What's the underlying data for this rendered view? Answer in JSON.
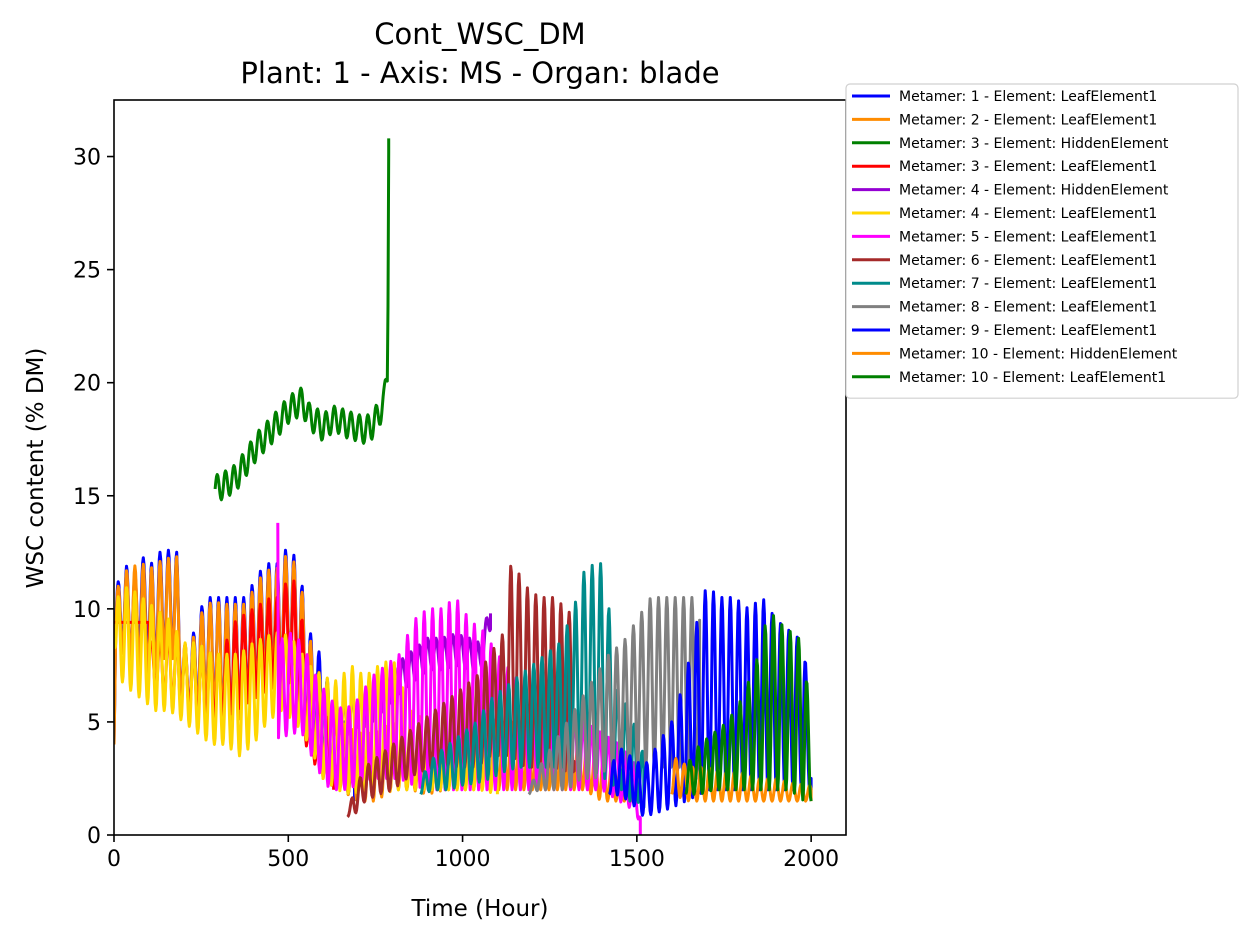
{
  "chart_data": {
    "type": "line",
    "title": "Cont_WSC_DM",
    "subtitle": "Plant: 1 - Axis: MS - Organ: blade",
    "xlabel": "Time (Hour)",
    "ylabel": "WSC content (% DM)",
    "xlim": [
      0,
      2100
    ],
    "ylim": [
      0,
      32.5
    ],
    "x_ticks": [
      0,
      500,
      1000,
      1500,
      2000
    ],
    "y_ticks": [
      0,
      5,
      10,
      15,
      20,
      25,
      30
    ],
    "grid": false,
    "legend_position": "outside right, top",
    "series": [
      {
        "name": "Metamer: 1 - Element: LeafElement1",
        "color": "#0000ff",
        "osc": true,
        "x": [
          0,
          5,
          40,
          60,
          80,
          110,
          130,
          160,
          180,
          200,
          230,
          260,
          290,
          320,
          350,
          380,
          410,
          440,
          470,
          500,
          530,
          560,
          580,
          600,
          630,
          660,
          690
        ],
        "y": [
          4.0,
          11.0,
          12.0,
          11.5,
          12.3,
          12.0,
          12.5,
          12.6,
          12.5,
          8.0,
          9.0,
          10.5,
          10.5,
          10.5,
          10.5,
          10.5,
          11.5,
          12.0,
          12.0,
          12.8,
          12.0,
          9.0,
          8.5,
          7.5,
          6.0,
          5.0,
          4.0
        ],
        "y_low": [
          4.0,
          8.5,
          8.0,
          7.5,
          8.5,
          7.0,
          8.0,
          8.0,
          8.0,
          5.5,
          5.5,
          6.0,
          5.5,
          5.0,
          5.0,
          6.0,
          6.5,
          7.0,
          7.0,
          7.5,
          6.0,
          4.0,
          3.5,
          3.0,
          2.5,
          2.0,
          1.5
        ]
      },
      {
        "name": "Metamer: 2 - Element: LeafElement1",
        "color": "#ff8c00",
        "osc": true,
        "x": [
          0,
          5,
          40,
          80,
          110,
          140,
          180,
          200,
          230,
          260,
          290,
          320,
          350,
          380,
          410,
          440,
          470,
          500,
          530,
          560,
          600,
          650,
          700,
          750,
          800,
          850,
          900,
          950,
          1000,
          1050,
          1100,
          1150,
          1200,
          1250,
          1300,
          1350,
          1400,
          1450,
          1500
        ],
        "y": [
          4.0,
          10.8,
          11.8,
          12.0,
          11.8,
          12.2,
          12.3,
          8.0,
          8.8,
          10.2,
          10.3,
          10.2,
          10.2,
          10.2,
          11.2,
          11.7,
          11.8,
          12.5,
          11.7,
          8.8,
          6.5,
          5.0,
          4.5,
          4.5,
          5.0,
          4.0,
          4.5,
          5.0,
          5.0,
          5.5,
          5.0,
          5.0,
          4.5,
          4.5,
          5.0,
          4.0,
          3.5,
          3.0,
          2.5
        ],
        "y_low": [
          4.0,
          8.3,
          7.8,
          7.3,
          6.8,
          7.8,
          7.8,
          5.3,
          5.3,
          5.8,
          5.3,
          4.8,
          4.8,
          5.8,
          6.3,
          6.8,
          6.8,
          7.3,
          5.8,
          3.8,
          2.5,
          2.0,
          1.5,
          1.5,
          2.0,
          2.0,
          1.8,
          2.0,
          2.0,
          2.0,
          2.0,
          2.0,
          2.0,
          2.0,
          2.0,
          2.0,
          1.5,
          1.5,
          1.5
        ]
      },
      {
        "name": "Metamer: 3 - Element: HiddenElement",
        "color": "#008000",
        "osc": true,
        "wiggle": 0.6,
        "period": 24,
        "x": [
          290,
          320,
          350,
          380,
          410,
          440,
          470,
          500,
          520,
          540,
          560,
          580,
          600,
          620,
          640,
          660,
          680,
          700,
          720,
          740,
          760,
          775,
          785,
          788
        ],
        "y": [
          15.3,
          15.5,
          15.8,
          16.5,
          17.2,
          17.7,
          18.2,
          18.8,
          19.0,
          19.2,
          18.5,
          18.3,
          18.0,
          18.3,
          18.4,
          18.2,
          18.1,
          18.0,
          17.9,
          18.1,
          18.6,
          19.2,
          20.5,
          30.8
        ]
      },
      {
        "name": "Metamer: 3 - Element: LeafElement1",
        "color": "#ff0000",
        "osc": true,
        "x": [
          0,
          100,
          105,
          150,
          200,
          250,
          300,
          350,
          400,
          450,
          480,
          500,
          530,
          550,
          580,
          600,
          630
        ],
        "y": [
          9.4,
          9.4,
          8.5,
          9.0,
          8.5,
          8.0,
          7.8,
          9.5,
          10.0,
          10.5,
          10.5,
          11.5,
          11.0,
          8.0,
          6.5,
          6.0,
          4.0
        ],
        "y_low": [
          9.4,
          9.4,
          6.5,
          6.0,
          5.5,
          5.0,
          5.0,
          5.5,
          6.0,
          6.5,
          6.5,
          7.0,
          5.0,
          4.0,
          3.0,
          3.0,
          2.0
        ]
      },
      {
        "name": "Metamer: 4 - Element: HiddenElement",
        "color": "#9400d3",
        "osc": true,
        "wiggle": 0.7,
        "period": 24,
        "x": [
          630,
          660,
          700,
          730,
          760,
          790,
          820,
          860,
          900,
          940,
          980,
          1020,
          1050,
          1070,
          1080
        ],
        "y": [
          5.5,
          5.0,
          5.5,
          5.5,
          6.0,
          6.5,
          7.0,
          7.5,
          8.0,
          8.0,
          8.2,
          8.0,
          7.8,
          9.0,
          9.8
        ]
      },
      {
        "name": "Metamer: 4 - Element: LeafElement1",
        "color": "#ffd700",
        "osc": true,
        "x": [
          0,
          10,
          40,
          80,
          120,
          160,
          200,
          240,
          280,
          320,
          360,
          400,
          440,
          480,
          520,
          560,
          600,
          640,
          680,
          720,
          760,
          800,
          850,
          900,
          950,
          1000,
          1050,
          1100
        ],
        "y": [
          9.0,
          10.5,
          11.0,
          10.5,
          10.0,
          9.5,
          8.5,
          8.5,
          8.0,
          8.0,
          8.0,
          8.5,
          8.8,
          9.0,
          8.5,
          7.5,
          7.0,
          6.8,
          7.5,
          7.0,
          7.5,
          7.8,
          5.5,
          5.0,
          4.5,
          4.5,
          4.5,
          4.0
        ],
        "y_low": [
          8.5,
          7.0,
          6.5,
          6.0,
          5.5,
          5.5,
          5.0,
          4.5,
          4.0,
          4.0,
          3.5,
          4.0,
          5.0,
          5.5,
          5.0,
          4.0,
          2.5,
          2.0,
          1.8,
          2.0,
          1.8,
          2.0,
          2.0,
          2.0,
          2.0,
          2.0,
          2.0,
          1.8
        ]
      },
      {
        "name": "Metamer: 5 - Element: LeafElement1",
        "color": "#ff00ff",
        "osc": true,
        "x": [
          470,
          472,
          500,
          540,
          580,
          620,
          660,
          700,
          740,
          780,
          820,
          860,
          900,
          940,
          980,
          1020,
          1060,
          1100,
          1150,
          1200,
          1250,
          1300,
          1350,
          1400,
          1450,
          1500,
          1510
        ],
        "y": [
          13.8,
          8.5,
          9.0,
          8.5,
          7.0,
          6.0,
          5.5,
          6.0,
          7.0,
          7.5,
          8.0,
          9.5,
          10.0,
          10.0,
          10.5,
          9.5,
          9.0,
          8.0,
          7.0,
          6.5,
          6.0,
          5.5,
          5.0,
          4.5,
          4.0,
          3.0,
          1.0
        ],
        "y_low": [
          13.8,
          4.0,
          4.5,
          4.5,
          3.0,
          2.0,
          2.0,
          2.2,
          2.5,
          2.5,
          2.5,
          2.2,
          2.0,
          2.0,
          2.0,
          2.0,
          2.0,
          2.0,
          2.0,
          2.0,
          2.0,
          2.0,
          2.0,
          2.0,
          1.5,
          1.0,
          0.0
        ]
      },
      {
        "name": "Metamer: 6 - Element: LeafElement1",
        "color": "#a52a2a",
        "osc": true,
        "x": [
          670,
          690,
          720,
          760,
          800,
          840,
          880,
          920,
          960,
          1000,
          1040,
          1080,
          1120,
          1140,
          1180,
          1220,
          1260,
          1300,
          1320
        ],
        "y": [
          1.0,
          2.0,
          3.0,
          3.5,
          4.0,
          4.5,
          5.0,
          5.5,
          6.0,
          6.5,
          7.0,
          8.0,
          9.0,
          12.2,
          11.0,
          10.5,
          10.5,
          10.0,
          9.5
        ],
        "y_low": [
          0.8,
          0.9,
          1.5,
          1.8,
          2.0,
          2.5,
          2.8,
          3.0,
          3.0,
          3.0,
          3.0,
          3.5,
          3.5,
          3.5,
          3.0,
          3.0,
          3.0,
          2.8,
          2.8
        ]
      },
      {
        "name": "Metamer: 7 - Element: LeafElement1",
        "color": "#008b8b",
        "osc": true,
        "x": [
          880,
          920,
          960,
          1000,
          1040,
          1080,
          1120,
          1160,
          1200,
          1240,
          1280,
          1320,
          1340,
          1360,
          1380,
          1400,
          1420,
          1440,
          1460,
          1480,
          1500,
          1520
        ],
        "y": [
          2.5,
          3.5,
          4.0,
          4.5,
          5.0,
          6.0,
          6.5,
          7.0,
          7.5,
          8.0,
          8.5,
          10.0,
          11.5,
          11.8,
          12.0,
          12.0,
          10.0,
          6.5,
          6.0,
          5.5,
          4.5,
          3.5
        ],
        "y_low": [
          1.8,
          2.0,
          2.0,
          2.2,
          2.3,
          2.5,
          2.8,
          3.0,
          3.0,
          3.0,
          3.0,
          3.0,
          3.0,
          2.8,
          2.8,
          2.5,
          2.5,
          2.0,
          2.0,
          1.5,
          1.5,
          1.2
        ]
      },
      {
        "name": "Metamer: 8 - Element: LeafElement1",
        "color": "#808080",
        "osc": true,
        "x": [
          1190,
          1220,
          1260,
          1300,
          1340,
          1380,
          1420,
          1460,
          1500,
          1540,
          1570,
          1600,
          1630,
          1660,
          1680
        ],
        "y": [
          2.0,
          3.0,
          4.0,
          5.0,
          6.0,
          7.0,
          8.0,
          8.5,
          9.5,
          10.5,
          10.5,
          10.5,
          10.5,
          10.5,
          10.0
        ],
        "y_low": [
          1.8,
          2.0,
          2.0,
          2.0,
          2.5,
          2.5,
          3.0,
          3.0,
          3.0,
          3.0,
          3.0,
          3.0,
          3.0,
          2.5,
          2.5
        ]
      },
      {
        "name": "Metamer: 9 - Element: LeafElement1",
        "color": "#0000ff",
        "osc": true,
        "x": [
          1420,
          1440,
          1480,
          1520,
          1560,
          1600,
          1640,
          1680,
          1700,
          1740,
          1780,
          1820,
          1860,
          1900,
          1940,
          1980,
          2000
        ],
        "y": [
          2.0,
          4.0,
          3.5,
          3.0,
          4.0,
          5.0,
          7.0,
          10.0,
          11.0,
          10.5,
          10.5,
          10.0,
          10.5,
          9.5,
          9.0,
          8.5,
          4.0
        ],
        "y_low": [
          1.8,
          1.8,
          1.5,
          0.8,
          1.0,
          1.2,
          1.5,
          1.8,
          2.0,
          2.0,
          2.0,
          2.0,
          2.0,
          2.0,
          2.0,
          2.0,
          2.0
        ]
      },
      {
        "name": "Metamer: 10 - Element: HiddenElement",
        "color": "#ff8c00",
        "osc": true,
        "x": [
          1600,
          1650,
          1700,
          1750,
          1800,
          1850,
          1900,
          1950,
          2000
        ],
        "y": [
          3.5,
          3.0,
          3.0,
          2.8,
          2.8,
          2.5,
          2.5,
          2.3,
          2.2
        ],
        "y_low": [
          1.8,
          1.5,
          1.5,
          1.5,
          1.5,
          1.5,
          1.5,
          1.5,
          1.5
        ]
      },
      {
        "name": "Metamer: 10 - Element: LeafElement1",
        "color": "#008000",
        "osc": true,
        "x": [
          1640,
          1680,
          1720,
          1760,
          1800,
          1840,
          1880,
          1900,
          1940,
          1980,
          2000
        ],
        "y": [
          3.0,
          4.0,
          4.5,
          5.0,
          6.0,
          7.5,
          10.0,
          9.5,
          9.0,
          8.5,
          4.0
        ],
        "y_low": [
          1.8,
          1.8,
          2.0,
          2.0,
          2.0,
          2.0,
          2.0,
          2.0,
          2.0,
          1.5,
          1.5
        ]
      }
    ]
  }
}
